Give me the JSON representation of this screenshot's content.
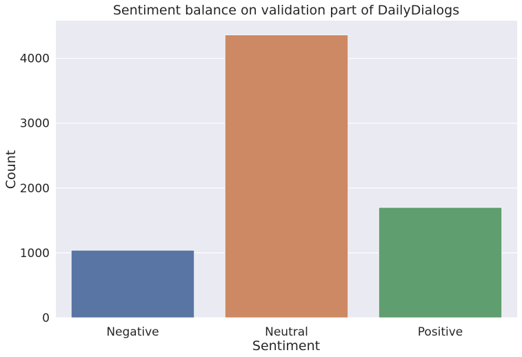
{
  "chart_data": {
    "type": "bar",
    "title": "Sentiment balance on validation part of DailyDialogs",
    "xlabel": "Sentiment",
    "ylabel": "Count",
    "categories": [
      "Negative",
      "Neutral",
      "Positive"
    ],
    "values": [
      1040,
      4360,
      1700
    ],
    "ylim": [
      0,
      4580
    ],
    "yticks": [
      0,
      1000,
      2000,
      3000,
      4000
    ],
    "grid": true,
    "colors": [
      "#5975a4",
      "#cc8963",
      "#5f9e6e"
    ],
    "background_color": "#eaeaf2",
    "grid_color": "#ffffff"
  }
}
